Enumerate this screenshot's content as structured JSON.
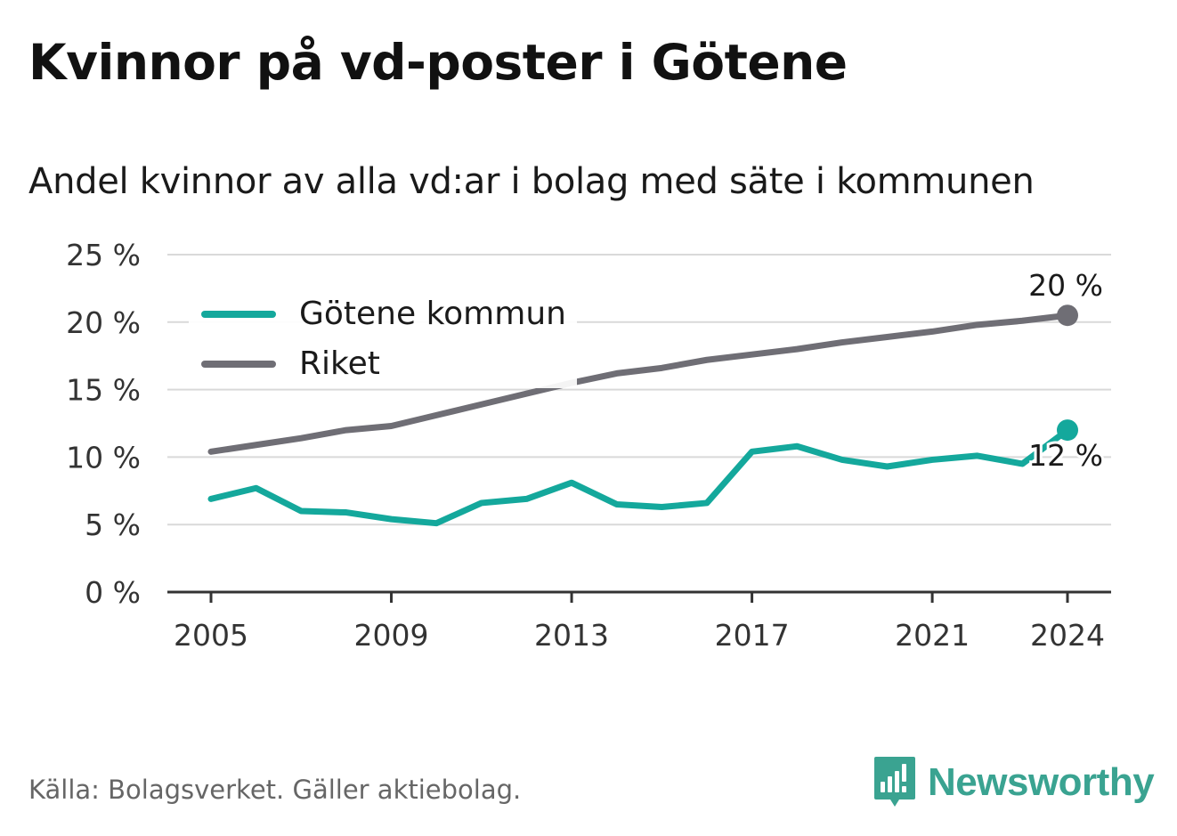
{
  "title": "Kvinnor på vd-poster i Götene",
  "subtitle": "Andel kvinnor av alla vd:ar i bolag med säte i kommunen",
  "source": "Källa: Bolagsverket. Gäller aktiebolag.",
  "brand": "Newsworthy",
  "colors": {
    "gotene": "#14a89c",
    "riket": "#6f6e75",
    "grid": "#d9d9d9",
    "axis": "#333333",
    "brand": "#3aa391"
  },
  "chart_data": {
    "type": "line",
    "x": [
      2005,
      2006,
      2007,
      2008,
      2009,
      2010,
      2011,
      2012,
      2013,
      2014,
      2015,
      2016,
      2017,
      2018,
      2019,
      2020,
      2021,
      2022,
      2023,
      2024
    ],
    "series": [
      {
        "name": "Götene kommun",
        "color": "#14a89c",
        "values": [
          6.9,
          7.7,
          6.0,
          5.9,
          5.4,
          5.1,
          6.6,
          6.9,
          8.1,
          6.5,
          6.3,
          6.6,
          10.4,
          10.8,
          9.8,
          9.3,
          9.8,
          10.1,
          9.5,
          12.0
        ]
      },
      {
        "name": "Riket",
        "color": "#6f6e75",
        "values": [
          10.4,
          10.9,
          11.4,
          12.0,
          12.3,
          13.1,
          13.9,
          14.7,
          15.5,
          16.2,
          16.6,
          17.2,
          17.6,
          18.0,
          18.5,
          18.9,
          19.3,
          19.8,
          20.1,
          20.5
        ]
      }
    ],
    "xticks": [
      2005,
      2009,
      2013,
      2017,
      2021,
      2024
    ],
    "xtick_labels": [
      "2005",
      "2009",
      "2013",
      "2017",
      "2021",
      "2024"
    ],
    "yticks": [
      0,
      5,
      10,
      15,
      20,
      25
    ],
    "ytick_labels": [
      "0 %",
      "5 %",
      "10 %",
      "15 %",
      "20 %",
      "25 %"
    ],
    "ylim": [
      0,
      25
    ],
    "end_labels": {
      "gotene": "12 %",
      "riket": "20 %"
    },
    "legend": {
      "placement": "top-left",
      "entries": [
        "Götene kommun",
        "Riket"
      ]
    },
    "grid": true
  }
}
